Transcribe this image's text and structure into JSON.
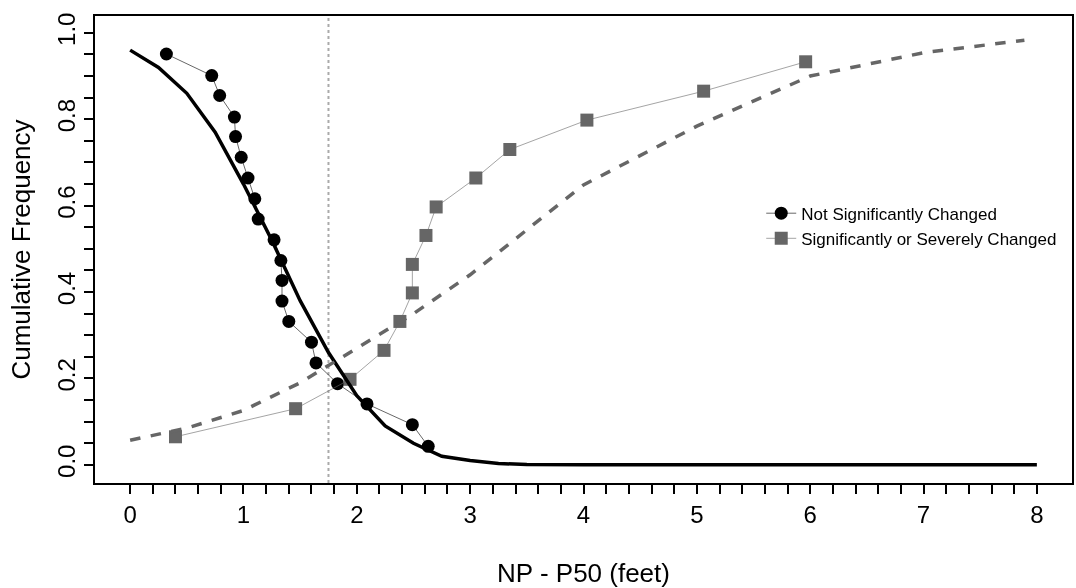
{
  "chart_data": {
    "type": "line",
    "xlabel": "NP - P50 (feet)",
    "ylabel": "Cumulative Frequency",
    "xlim": [
      -0.31,
      8.31
    ],
    "ylim": [
      -0.042,
      1.039
    ],
    "xticks": [
      0,
      {
        "value": 0.2,
        "label": null
      },
      {
        "value": 0.4,
        "label": null
      },
      {
        "value": 0.6,
        "label": null
      },
      {
        "value": 0.8,
        "label": null
      },
      1,
      {
        "value": 1.2,
        "label": null
      },
      {
        "value": 1.4,
        "label": null
      },
      {
        "value": 1.6,
        "label": null
      },
      {
        "value": 1.8,
        "label": null
      },
      2,
      {
        "value": 2.2,
        "label": null
      },
      {
        "value": 2.4,
        "label": null
      },
      {
        "value": 2.6,
        "label": null
      },
      {
        "value": 2.8,
        "label": null
      },
      3,
      {
        "value": 3.2,
        "label": null
      },
      {
        "value": 3.4,
        "label": null
      },
      {
        "value": 3.6,
        "label": null
      },
      {
        "value": 3.8,
        "label": null
      },
      4,
      {
        "value": 4.2,
        "label": null
      },
      {
        "value": 4.4,
        "label": null
      },
      {
        "value": 4.6,
        "label": null
      },
      {
        "value": 4.8,
        "label": null
      },
      5,
      {
        "value": 5.2,
        "label": null
      },
      {
        "value": 5.4,
        "label": null
      },
      {
        "value": 5.6,
        "label": null
      },
      {
        "value": 5.8,
        "label": null
      },
      6,
      {
        "value": 6.2,
        "label": null
      },
      {
        "value": 6.4,
        "label": null
      },
      {
        "value": 6.6,
        "label": null
      },
      {
        "value": 6.8,
        "label": null
      },
      7,
      {
        "value": 7.2,
        "label": null
      },
      {
        "value": 7.4,
        "label": null
      },
      {
        "value": 7.6,
        "label": null
      },
      {
        "value": 7.8,
        "label": null
      },
      8
    ],
    "yticks": [
      {
        "value": 0,
        "label": "0.0"
      },
      {
        "value": 0.05,
        "label": null
      },
      {
        "value": 0.1,
        "label": null
      },
      {
        "value": 0.15,
        "label": null
      },
      0.2,
      {
        "value": 0.25,
        "label": null
      },
      {
        "value": 0.3,
        "label": null
      },
      {
        "value": 0.35,
        "label": null
      },
      0.4,
      {
        "value": 0.45,
        "label": null
      },
      {
        "value": 0.5,
        "label": null
      },
      {
        "value": 0.55,
        "label": null
      },
      0.6,
      {
        "value": 0.65,
        "label": null
      },
      {
        "value": 0.7,
        "label": null
      },
      {
        "value": 0.75,
        "label": null
      },
      0.8,
      {
        "value": 0.85,
        "label": null
      },
      {
        "value": 0.9,
        "label": null
      },
      {
        "value": 0.95,
        "label": null
      },
      {
        "value": 1,
        "label": "1.0"
      }
    ],
    "grid": false,
    "legend": "right",
    "ref_lines": [
      {
        "axis": "x",
        "value": 1.75,
        "label": null,
        "color": "#aaaaaa",
        "line_style": "dotted"
      }
    ],
    "series": [
      {
        "name": "Not Significantly Changed",
        "color": "#000000",
        "marker": "circle",
        "line_style": "solid",
        "x": [
          0.32,
          0.72,
          0.79,
          0.92,
          0.93,
          0.98,
          1.04,
          1.1,
          1.13,
          1.27,
          1.33,
          1.34,
          1.34,
          1.4,
          1.6,
          1.64,
          1.83,
          2.09,
          2.49,
          2.63
        ],
        "values": [
          0.951,
          0.901,
          0.855,
          0.805,
          0.76,
          0.712,
          0.664,
          0.616,
          0.569,
          0.521,
          0.473,
          0.427,
          0.379,
          0.332,
          0.284,
          0.236,
          0.188,
          0.141,
          0.093,
          0.043
        ]
      },
      {
        "name": "Significantly or Severely Changed",
        "color": "#666666",
        "marker": "square",
        "line_style": "solid",
        "x": [
          0.4,
          1.46,
          1.94,
          2.24,
          2.38,
          2.49,
          2.49,
          2.61,
          2.7,
          3.05,
          3.35,
          4.03,
          5.06,
          5.96
        ],
        "values": [
          0.065,
          0.13,
          0.198,
          0.265,
          0.332,
          0.398,
          0.464,
          0.531,
          0.597,
          0.664,
          0.73,
          0.798,
          0.865,
          0.933
        ]
      },
      {
        "color": "#000000",
        "marker": "none",
        "line_style": "solid",
        "x": [
          0,
          0.25,
          0.5,
          0.75,
          1,
          1.25,
          1.5,
          1.75,
          2,
          2.25,
          2.5,
          2.75,
          3,
          3.25,
          3.5,
          4,
          5,
          6,
          7,
          8
        ],
        "values": [
          0.96,
          0.92,
          0.86,
          0.77,
          0.65,
          0.52,
          0.38,
          0.26,
          0.16,
          0.09,
          0.05,
          0.02,
          0.01,
          0.003,
          0.001,
          0,
          0,
          0,
          0,
          0
        ]
      },
      {
        "color": "#666666",
        "marker": "none",
        "line_style": "dashed",
        "x": [
          0,
          0.5,
          1,
          1.5,
          2,
          2.5,
          3,
          4,
          5,
          6,
          7,
          7.89
        ],
        "values": [
          0.057,
          0.085,
          0.126,
          0.19,
          0.27,
          0.35,
          0.44,
          0.648,
          0.784,
          0.9,
          0.954,
          0.983
        ]
      }
    ]
  }
}
